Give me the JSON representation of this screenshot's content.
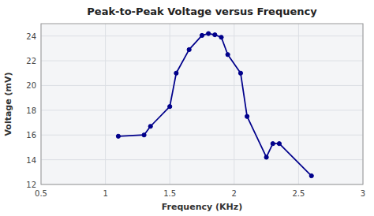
{
  "chart_data": {
    "type": "line",
    "title": "Peak-to-Peak Voltage versus Frequency",
    "xlabel": "Frequency (KHz)",
    "ylabel": "Voltage (mV)",
    "xlim": [
      0.5,
      3.0
    ],
    "ylim": [
      12,
      25
    ],
    "xticks": [
      0.5,
      1,
      1.5,
      2,
      2.5,
      3
    ],
    "yticks": [
      12,
      14,
      16,
      18,
      20,
      22,
      24
    ],
    "x": [
      1.1,
      1.3,
      1.35,
      1.5,
      1.55,
      1.65,
      1.75,
      1.8,
      1.85,
      1.9,
      1.95,
      2.05,
      2.1,
      2.25,
      2.3,
      2.35,
      2.6
    ],
    "values": [
      15.9,
      16.0,
      16.7,
      18.3,
      21.0,
      22.9,
      24.05,
      24.2,
      24.1,
      23.9,
      22.5,
      21.0,
      17.5,
      14.2,
      15.3,
      15.3,
      12.7
    ],
    "color": "#00008B",
    "marker": "circle",
    "grid": true
  }
}
